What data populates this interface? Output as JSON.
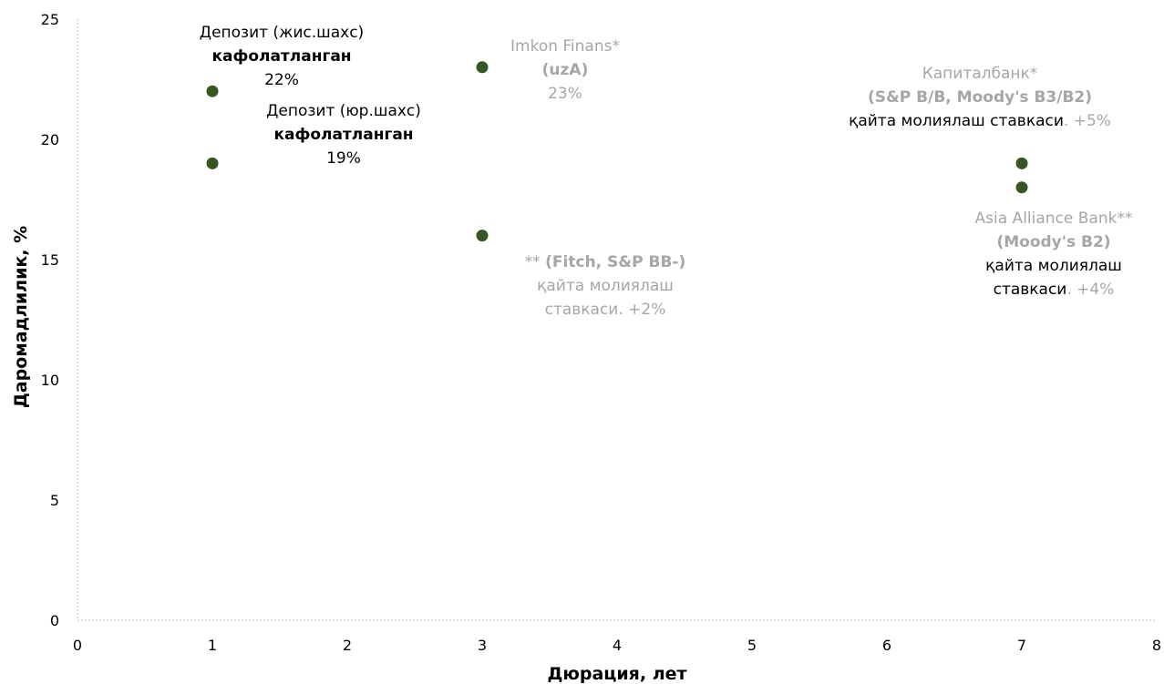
{
  "chart_data": {
    "type": "scatter",
    "xlabel": "Дюрация, лет",
    "ylabel": "Даромадлилик, %",
    "xlim": [
      0,
      8
    ],
    "ylim": [
      0,
      25
    ],
    "x_ticks": [
      "0",
      "1",
      "2",
      "3",
      "4",
      "5",
      "6",
      "7",
      "8"
    ],
    "y_ticks": [
      "0",
      "5",
      "10",
      "15",
      "20",
      "25"
    ],
    "grid": false,
    "marker_color": "#375623",
    "muted_color": "#a6a6a6",
    "points": [
      {
        "x": 1,
        "y": 22
      },
      {
        "x": 1,
        "y": 19
      },
      {
        "x": 3,
        "y": 23
      },
      {
        "x": 3,
        "y": 16
      },
      {
        "x": 7,
        "y": 19
      },
      {
        "x": 7,
        "y": 18
      }
    ],
    "annotations": [
      {
        "name": "deposit-individual",
        "lines": [
          [
            {
              "text": "Депозит (жис.шахс)",
              "color": "black",
              "bold": false
            }
          ],
          [
            {
              "text": "кафолатланган",
              "color": "black",
              "bold": true
            }
          ],
          [
            {
              "text": "22%",
              "color": "black",
              "bold": false
            }
          ]
        ]
      },
      {
        "name": "deposit-legal",
        "lines": [
          [
            {
              "text": "Депозит (юр.шахс)",
              "color": "black",
              "bold": false
            }
          ],
          [
            {
              "text": "кафолатланган",
              "color": "black",
              "bold": true
            }
          ],
          [
            {
              "text": "19%",
              "color": "black",
              "bold": false
            }
          ]
        ]
      },
      {
        "name": "imkon-finans",
        "lines": [
          [
            {
              "text": "Imkon Finans*",
              "color": "gray",
              "bold": false
            }
          ],
          [
            {
              "text": "(uzA)",
              "color": "gray",
              "bold": true
            }
          ],
          [
            {
              "text": "23%",
              "color": "gray",
              "bold": false
            }
          ]
        ]
      },
      {
        "name": "fitch-bb",
        "lines": [
          [
            {
              "text": "** ",
              "color": "gray",
              "bold": false
            },
            {
              "text": "(Fitch, S&P BB-)",
              "color": "gray",
              "bold": true
            }
          ],
          [
            {
              "text": "қайта молиялаш",
              "color": "gray",
              "bold": false
            }
          ],
          [
            {
              "text": "ставкаси. +2%",
              "color": "gray",
              "bold": false
            }
          ]
        ]
      },
      {
        "name": "kapitalbank",
        "lines": [
          [
            {
              "text": "Капиталбанк*",
              "color": "gray",
              "bold": false
            }
          ],
          [
            {
              "text": "(S&P B/B, Moody's B3/B2)",
              "color": "gray",
              "bold": true
            }
          ],
          [
            {
              "text": "қайта молиялаш ставкаси",
              "color": "black",
              "bold": false
            },
            {
              "text": ". +5%",
              "color": "gray",
              "bold": false
            }
          ]
        ]
      },
      {
        "name": "asia-alliance-bank",
        "lines": [
          [
            {
              "text": "Asia Alliance Bank**",
              "color": "gray",
              "bold": false
            }
          ],
          [
            {
              "text": "(Moody's B2)",
              "color": "gray",
              "bold": true
            }
          ],
          [
            {
              "text": "қайта молиялаш",
              "color": "black",
              "bold": false
            }
          ],
          [
            {
              "text": "ставкаси",
              "color": "black",
              "bold": false
            },
            {
              "text": ". +4%",
              "color": "gray",
              "bold": false
            }
          ]
        ]
      }
    ]
  }
}
